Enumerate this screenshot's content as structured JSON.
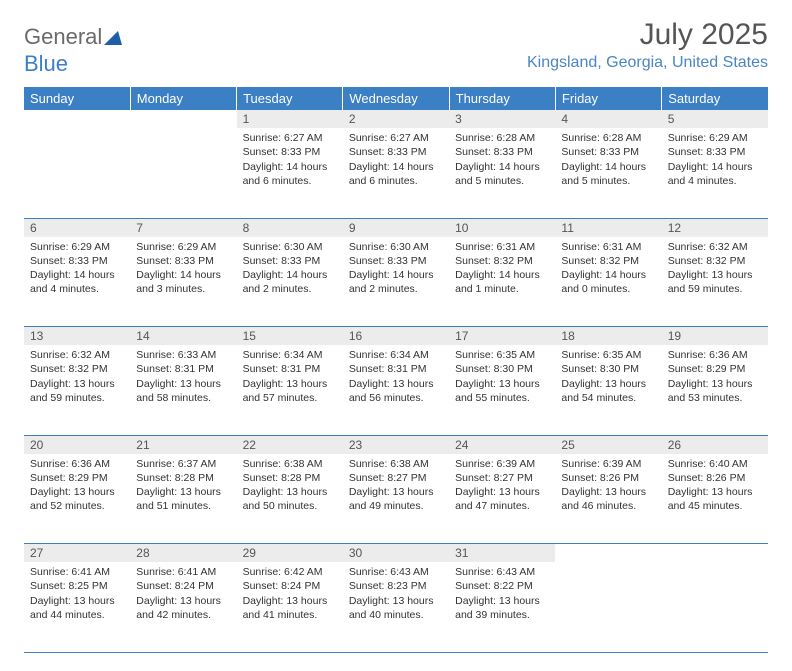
{
  "brand": {
    "name_gray": "General",
    "name_blue": "Blue"
  },
  "title": "July 2025",
  "location": "Kingsland, Georgia, United States",
  "colors": {
    "header_bg": "#3b7fc4",
    "header_text": "#ffffff",
    "daynum_bg": "#ececec",
    "border": "#3b7fc4",
    "logo_gray": "#6b6b6b",
    "logo_blue": "#3b7fc4",
    "location_text": "#4a85c5"
  },
  "weekday_headers": [
    "Sunday",
    "Monday",
    "Tuesday",
    "Wednesday",
    "Thursday",
    "Friday",
    "Saturday"
  ],
  "first_weekday_index": 2,
  "days": [
    {
      "n": 1,
      "sr": "6:27 AM",
      "ss": "8:33 PM",
      "dl": "14 hours and 6 minutes."
    },
    {
      "n": 2,
      "sr": "6:27 AM",
      "ss": "8:33 PM",
      "dl": "14 hours and 6 minutes."
    },
    {
      "n": 3,
      "sr": "6:28 AM",
      "ss": "8:33 PM",
      "dl": "14 hours and 5 minutes."
    },
    {
      "n": 4,
      "sr": "6:28 AM",
      "ss": "8:33 PM",
      "dl": "14 hours and 5 minutes."
    },
    {
      "n": 5,
      "sr": "6:29 AM",
      "ss": "8:33 PM",
      "dl": "14 hours and 4 minutes."
    },
    {
      "n": 6,
      "sr": "6:29 AM",
      "ss": "8:33 PM",
      "dl": "14 hours and 4 minutes."
    },
    {
      "n": 7,
      "sr": "6:29 AM",
      "ss": "8:33 PM",
      "dl": "14 hours and 3 minutes."
    },
    {
      "n": 8,
      "sr": "6:30 AM",
      "ss": "8:33 PM",
      "dl": "14 hours and 2 minutes."
    },
    {
      "n": 9,
      "sr": "6:30 AM",
      "ss": "8:33 PM",
      "dl": "14 hours and 2 minutes."
    },
    {
      "n": 10,
      "sr": "6:31 AM",
      "ss": "8:32 PM",
      "dl": "14 hours and 1 minute."
    },
    {
      "n": 11,
      "sr": "6:31 AM",
      "ss": "8:32 PM",
      "dl": "14 hours and 0 minutes."
    },
    {
      "n": 12,
      "sr": "6:32 AM",
      "ss": "8:32 PM",
      "dl": "13 hours and 59 minutes."
    },
    {
      "n": 13,
      "sr": "6:32 AM",
      "ss": "8:32 PM",
      "dl": "13 hours and 59 minutes."
    },
    {
      "n": 14,
      "sr": "6:33 AM",
      "ss": "8:31 PM",
      "dl": "13 hours and 58 minutes."
    },
    {
      "n": 15,
      "sr": "6:34 AM",
      "ss": "8:31 PM",
      "dl": "13 hours and 57 minutes."
    },
    {
      "n": 16,
      "sr": "6:34 AM",
      "ss": "8:31 PM",
      "dl": "13 hours and 56 minutes."
    },
    {
      "n": 17,
      "sr": "6:35 AM",
      "ss": "8:30 PM",
      "dl": "13 hours and 55 minutes."
    },
    {
      "n": 18,
      "sr": "6:35 AM",
      "ss": "8:30 PM",
      "dl": "13 hours and 54 minutes."
    },
    {
      "n": 19,
      "sr": "6:36 AM",
      "ss": "8:29 PM",
      "dl": "13 hours and 53 minutes."
    },
    {
      "n": 20,
      "sr": "6:36 AM",
      "ss": "8:29 PM",
      "dl": "13 hours and 52 minutes."
    },
    {
      "n": 21,
      "sr": "6:37 AM",
      "ss": "8:28 PM",
      "dl": "13 hours and 51 minutes."
    },
    {
      "n": 22,
      "sr": "6:38 AM",
      "ss": "8:28 PM",
      "dl": "13 hours and 50 minutes."
    },
    {
      "n": 23,
      "sr": "6:38 AM",
      "ss": "8:27 PM",
      "dl": "13 hours and 49 minutes."
    },
    {
      "n": 24,
      "sr": "6:39 AM",
      "ss": "8:27 PM",
      "dl": "13 hours and 47 minutes."
    },
    {
      "n": 25,
      "sr": "6:39 AM",
      "ss": "8:26 PM",
      "dl": "13 hours and 46 minutes."
    },
    {
      "n": 26,
      "sr": "6:40 AM",
      "ss": "8:26 PM",
      "dl": "13 hours and 45 minutes."
    },
    {
      "n": 27,
      "sr": "6:41 AM",
      "ss": "8:25 PM",
      "dl": "13 hours and 44 minutes."
    },
    {
      "n": 28,
      "sr": "6:41 AM",
      "ss": "8:24 PM",
      "dl": "13 hours and 42 minutes."
    },
    {
      "n": 29,
      "sr": "6:42 AM",
      "ss": "8:24 PM",
      "dl": "13 hours and 41 minutes."
    },
    {
      "n": 30,
      "sr": "6:43 AM",
      "ss": "8:23 PM",
      "dl": "13 hours and 40 minutes."
    },
    {
      "n": 31,
      "sr": "6:43 AM",
      "ss": "8:22 PM",
      "dl": "13 hours and 39 minutes."
    }
  ],
  "labels": {
    "sunrise": "Sunrise:",
    "sunset": "Sunset:",
    "daylight": "Daylight:"
  }
}
